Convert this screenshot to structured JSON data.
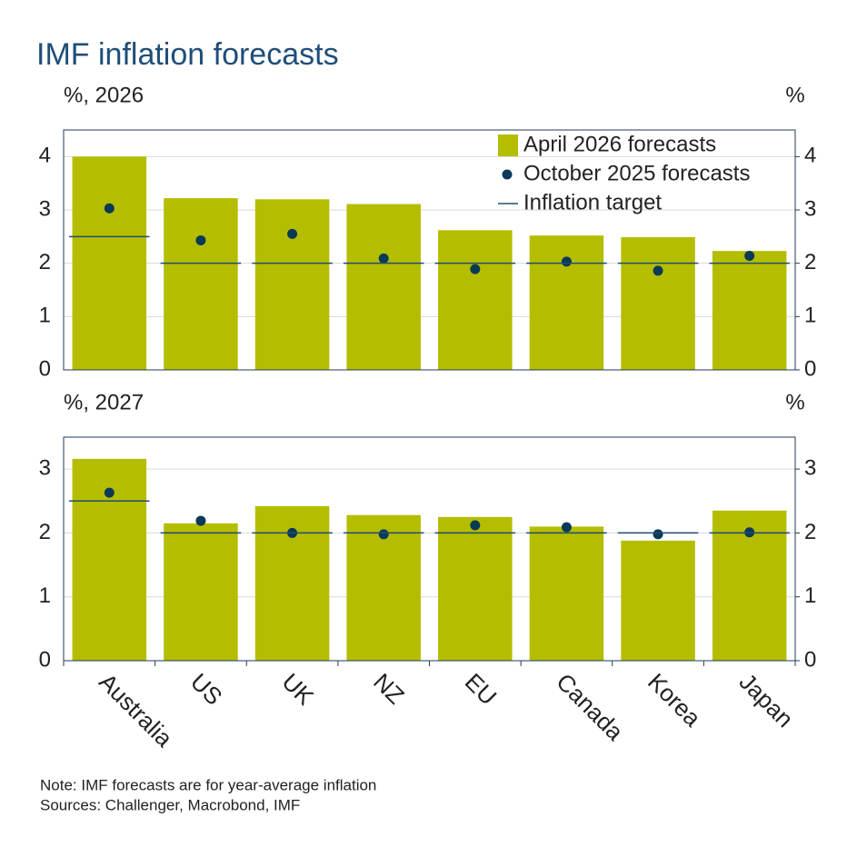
{
  "title": "IMF inflation forecasts",
  "notes": [
    "Note: IMF forecasts are for year-average inflation",
    "Sources: Challenger, Macrobond, IMF"
  ],
  "chart_data": [
    {
      "type": "bar",
      "y_label": "%, 2026",
      "y2_label": "%",
      "ylim": [
        0,
        4.5
      ],
      "yticks": [
        0,
        1,
        2,
        3,
        4
      ],
      "y2lim": [
        0,
        4.5
      ],
      "y2ticks": [
        0,
        1,
        2,
        3,
        4
      ],
      "grid": true,
      "legend": "upper right",
      "series": [
        {
          "name": "April 2026 forecasts",
          "type": "bar",
          "color": "#b5bd00",
          "values": [
            4.0,
            3.22,
            3.2,
            3.11,
            2.62,
            2.52,
            2.49,
            2.23
          ]
        },
        {
          "name": "October 2025 forecasts",
          "type": "scatter",
          "color": "#0b3a57",
          "values": [
            3.03,
            2.43,
            2.55,
            2.09,
            1.89,
            2.03,
            1.86,
            2.14
          ]
        },
        {
          "name": "Inflation target",
          "type": "hline",
          "color": "#1f4e6e",
          "values": [
            2.5,
            2,
            2,
            2,
            2,
            2,
            2,
            2
          ]
        }
      ]
    },
    {
      "type": "bar",
      "y_label": "%, 2027",
      "y2_label": "%",
      "ylim": [
        0,
        3.5
      ],
      "yticks": [
        0,
        1,
        2,
        3
      ],
      "y2lim": [
        0,
        3.5
      ],
      "y2ticks": [
        0,
        1,
        2,
        3
      ],
      "grid": true,
      "categories": [
        "Australia",
        "US",
        "UK",
        "NZ",
        "EU",
        "Canada",
        "Korea",
        "Japan"
      ],
      "series": [
        {
          "type": "bar",
          "color": "#b5bd00",
          "values": [
            3.16,
            2.15,
            2.42,
            2.28,
            2.25,
            2.1,
            1.88,
            2.35
          ]
        },
        {
          "type": "scatter",
          "color": "#0b3a57",
          "values": [
            2.63,
            2.19,
            2.0,
            1.98,
            2.12,
            2.09,
            1.98,
            2.01
          ]
        },
        {
          "type": "hline",
          "color": "#1f4e6e",
          "values": [
            2.5,
            2,
            2,
            2,
            2,
            2,
            2,
            2
          ]
        }
      ]
    }
  ]
}
